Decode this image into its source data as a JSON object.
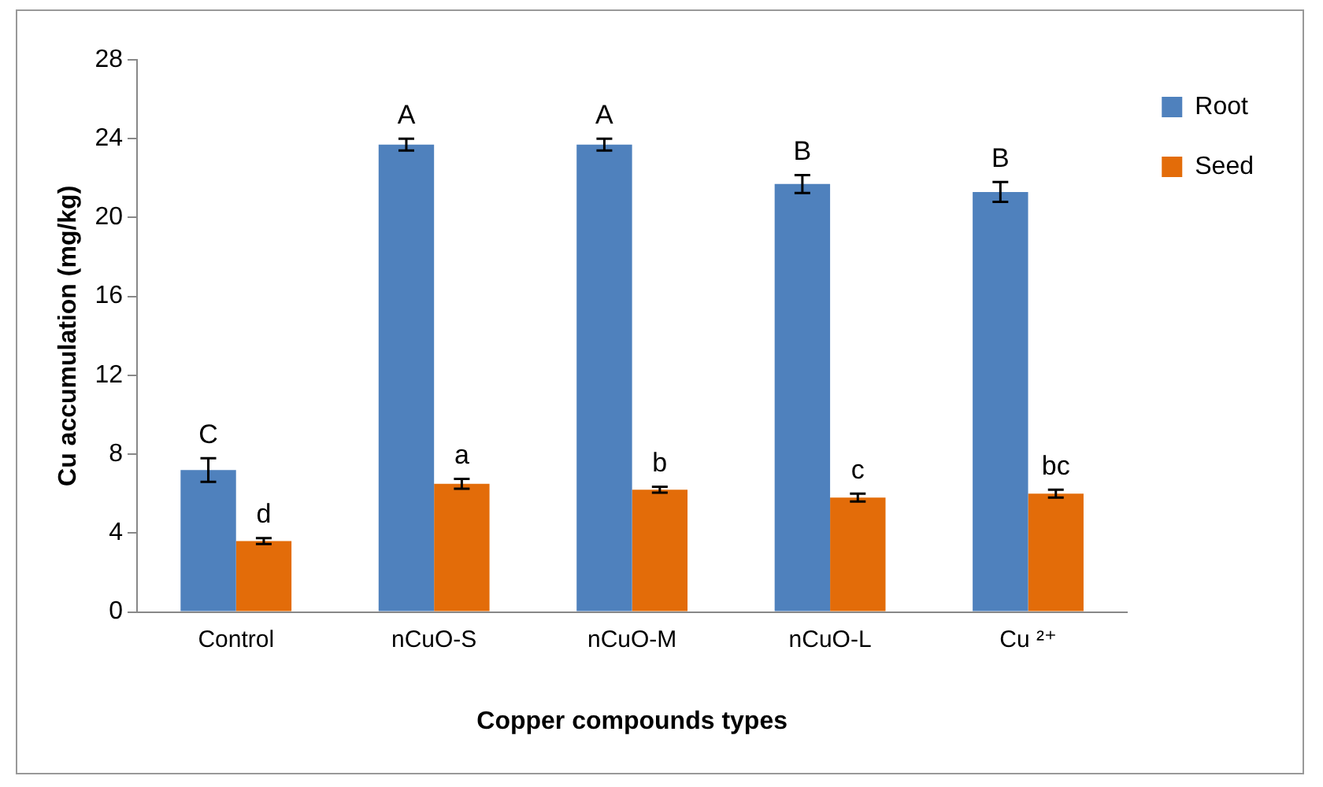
{
  "chart_data": {
    "type": "bar",
    "xlabel": "Copper compounds types",
    "ylabel": "Cu accumulation (mg/kg)",
    "categories": [
      "Control",
      "nCuO-S",
      "nCuO-M",
      "nCuO-L",
      "Cu ²⁺"
    ],
    "series": [
      {
        "name": "Root",
        "color": "#4f81bd",
        "values": [
          7.2,
          23.7,
          23.7,
          21.7,
          21.3
        ],
        "errors": [
          0.6,
          0.3,
          0.3,
          0.45,
          0.5
        ]
      },
      {
        "name": "Seed",
        "color": "#e36c09",
        "values": [
          3.6,
          6.5,
          6.2,
          5.8,
          6.0
        ],
        "errors": [
          0.15,
          0.25,
          0.15,
          0.2,
          0.2
        ]
      }
    ],
    "ylim": [
      0,
      28
    ],
    "yticks": [
      0,
      4,
      8,
      12,
      16,
      20,
      24,
      28
    ],
    "grid": false,
    "legend": "top right",
    "annotations": [
      {
        "text": "C",
        "x": "Control",
        "y": 7.2
      },
      {
        "text": "d",
        "x": "Control",
        "y": 3.6
      },
      {
        "text": "A",
        "x": "nCuO-S",
        "y": 23.7
      },
      {
        "text": "a",
        "x": "nCuO-S",
        "y": 6.5
      },
      {
        "text": "A",
        "x": "nCuO-M",
        "y": 23.7
      },
      {
        "text": "b",
        "x": "nCuO-M",
        "y": 6.2
      },
      {
        "text": "B",
        "x": "nCuO-L",
        "y": 21.7
      },
      {
        "text": "c",
        "x": "nCuO-L",
        "y": 5.8
      },
      {
        "text": "B",
        "x": "Cu ²⁺",
        "y": 21.3
      },
      {
        "text": "bc",
        "x": "Cu ²⁺",
        "y": 6.0
      }
    ]
  }
}
